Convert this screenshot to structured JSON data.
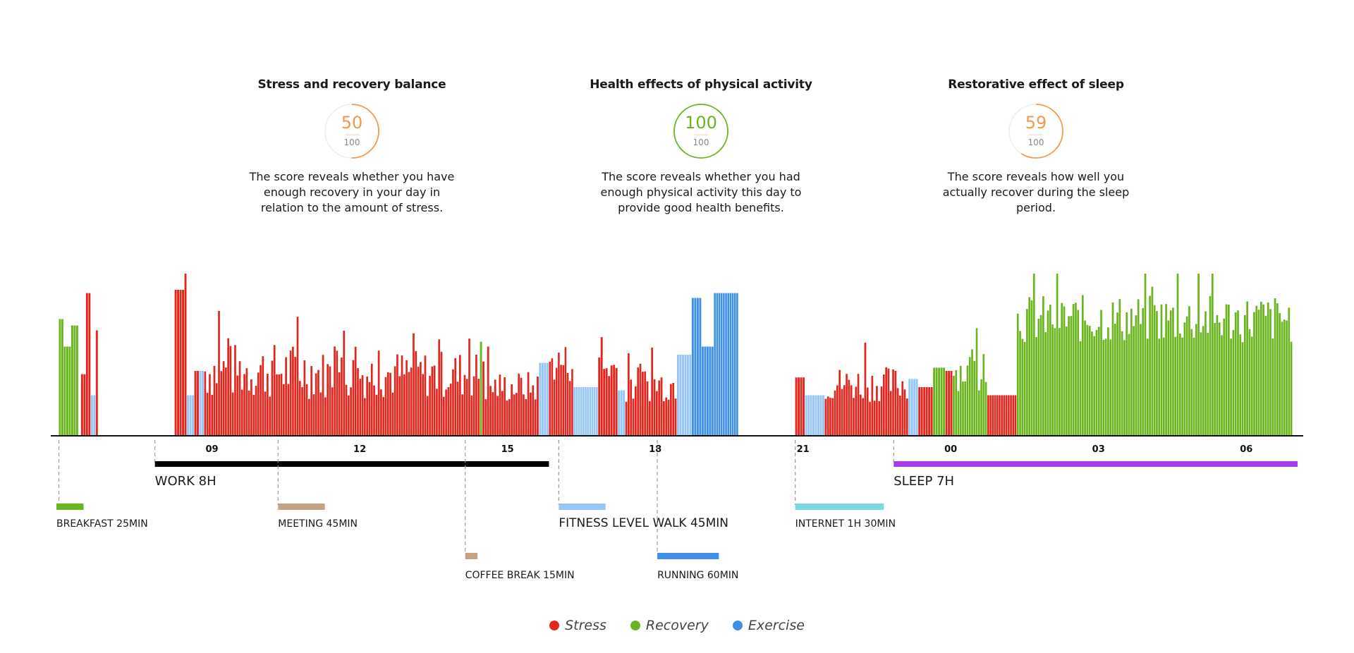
{
  "colors": {
    "stress": "#e3261d",
    "recovery": "#6ab51e",
    "exercise": "#3f8fe6",
    "light_activity": "#95c6f7",
    "gauge_orange": "#f19a4a",
    "gauge_green": "#6ab51e",
    "axis": "#111111"
  },
  "cards": [
    {
      "title": "Stress and recovery balance",
      "score": "50",
      "max": "100",
      "score_fraction": 0.5,
      "color": "#f19a4a",
      "description": "The score reveals whether you have enough recovery in your day in relation to the amount of stress."
    },
    {
      "title": "Health effects of physical activity",
      "score": "100",
      "max": "100",
      "score_fraction": 1.0,
      "color": "#6ab51e",
      "description": "The score reveals whether you had enough physical activity this day to provide good health benefits."
    },
    {
      "title": "Restorative effect of sleep",
      "score": "59",
      "max": "100",
      "score_fraction": 0.59,
      "color": "#f19a4a",
      "description": "The score reveals how well you actually recover during the sleep period."
    }
  ],
  "chart_data": {
    "type": "bar",
    "x_range_hours": [
      6.0,
      31.2
    ],
    "x_ticks": [
      {
        "hour": 9,
        "label": "09"
      },
      {
        "hour": 12,
        "label": "12"
      },
      {
        "hour": 15,
        "label": "15"
      },
      {
        "hour": 18,
        "label": "18"
      },
      {
        "hour": 21,
        "label": "21"
      },
      {
        "hour": 24,
        "label": "00"
      },
      {
        "hour": 27,
        "label": "03"
      },
      {
        "hour": 30,
        "label": "06"
      }
    ],
    "segments": [
      {
        "start": 6.05,
        "end": 6.15,
        "type": "recovery",
        "level": 0.72
      },
      {
        "start": 6.15,
        "end": 6.3,
        "type": "recovery",
        "level": 0.55
      },
      {
        "start": 6.3,
        "end": 6.45,
        "type": "recovery",
        "level": 0.68
      },
      {
        "start": 6.5,
        "end": 6.6,
        "type": "stress",
        "level": 0.38
      },
      {
        "start": 6.6,
        "end": 6.7,
        "type": "stress",
        "level": 0.88
      },
      {
        "start": 6.7,
        "end": 6.8,
        "type": "light",
        "level": 0.25
      },
      {
        "start": 6.8,
        "end": 6.85,
        "type": "stress",
        "level": 0.65
      },
      {
        "start": 8.4,
        "end": 8.6,
        "type": "stress",
        "level": 0.9
      },
      {
        "start": 8.6,
        "end": 8.65,
        "type": "stress",
        "level": 1.0
      },
      {
        "start": 8.65,
        "end": 8.8,
        "type": "light",
        "level": 0.25
      },
      {
        "start": 8.8,
        "end": 8.9,
        "type": "stress",
        "level": 0.4
      },
      {
        "start": 8.9,
        "end": 9.0,
        "type": "light",
        "level": 0.4
      },
      {
        "start": 9.0,
        "end": 11.3,
        "type": "stress",
        "level": 0.4,
        "var": 0.35
      },
      {
        "start": 11.3,
        "end": 14.6,
        "type": "stress",
        "level": 0.38,
        "var": 0.3
      },
      {
        "start": 14.6,
        "end": 14.65,
        "type": "recovery",
        "level": 0.58
      },
      {
        "start": 14.65,
        "end": 15.8,
        "type": "stress",
        "level": 0.3,
        "var": 0.2
      },
      {
        "start": 15.8,
        "end": 16.0,
        "type": "light",
        "level": 0.45
      },
      {
        "start": 16.0,
        "end": 16.5,
        "type": "stress",
        "level": 0.45,
        "var": 0.25
      },
      {
        "start": 16.5,
        "end": 17.0,
        "type": "light",
        "level": 0.3
      },
      {
        "start": 17.0,
        "end": 17.4,
        "type": "stress",
        "level": 0.42,
        "var": 0.2
      },
      {
        "start": 17.4,
        "end": 17.55,
        "type": "light",
        "level": 0.28
      },
      {
        "start": 17.55,
        "end": 18.6,
        "type": "stress",
        "level": 0.32,
        "var": 0.22
      },
      {
        "start": 18.6,
        "end": 18.9,
        "type": "light",
        "level": 0.5
      },
      {
        "start": 18.9,
        "end": 19.1,
        "type": "exercise",
        "level": 0.85
      },
      {
        "start": 19.1,
        "end": 19.35,
        "type": "exercise",
        "level": 0.55
      },
      {
        "start": 19.35,
        "end": 19.85,
        "type": "exercise",
        "level": 0.88
      },
      {
        "start": 21.0,
        "end": 21.2,
        "type": "stress",
        "level": 0.36
      },
      {
        "start": 21.2,
        "end": 21.6,
        "type": "light",
        "level": 0.25
      },
      {
        "start": 21.6,
        "end": 23.3,
        "type": "stress",
        "level": 0.32,
        "var": 0.22
      },
      {
        "start": 23.3,
        "end": 23.5,
        "type": "light",
        "level": 0.35
      },
      {
        "start": 23.5,
        "end": 23.8,
        "type": "stress",
        "level": 0.3
      },
      {
        "start": 23.8,
        "end": 24.05,
        "type": "recovery",
        "level": 0.42
      },
      {
        "start": 24.05,
        "end": 24.2,
        "type": "stress",
        "level": 0.4
      },
      {
        "start": 24.2,
        "end": 24.9,
        "type": "recovery",
        "level": 0.4,
        "var": 0.25
      },
      {
        "start": 24.9,
        "end": 25.5,
        "type": "stress",
        "level": 0.25
      },
      {
        "start": 25.5,
        "end": 31.1,
        "type": "recovery",
        "level": 0.72,
        "var": 0.3
      }
    ],
    "events": [
      {
        "label": "WORK 8H",
        "start": 8.0,
        "end": 16.0,
        "color": "#000000",
        "row": "main",
        "marker": 8.0
      },
      {
        "label": "SLEEP 7H",
        "start": 23.0,
        "end": 31.2,
        "color": "#a63ee8",
        "row": "main",
        "marker": 23.0
      },
      {
        "label": "BREAKFAST 25MIN",
        "start": 6.0,
        "end": 6.55,
        "color": "#6ab51e",
        "row": "r1",
        "marker": 6.05
      },
      {
        "label": "MEETING 45MIN",
        "start": 10.5,
        "end": 11.45,
        "color": "#c3a384",
        "row": "r1",
        "marker": 10.5
      },
      {
        "label": "FITNESS LEVEL WALK 45MIN",
        "start": 16.2,
        "end": 17.15,
        "color": "#95c6f7",
        "row": "r1",
        "marker": 16.2
      },
      {
        "label": "INTERNET 1H 30MIN",
        "start": 21.0,
        "end": 22.8,
        "color": "#7ad9e0",
        "row": "r1",
        "marker": 21.0
      },
      {
        "label": "COFFEE BREAK 15MIN",
        "start": 14.3,
        "end": 14.55,
        "color": "#c3a384",
        "row": "r2",
        "marker": 14.3
      },
      {
        "label": "RUNNING 60MIN",
        "start": 18.2,
        "end": 19.45,
        "color": "#3f8fe6",
        "row": "r2",
        "marker": 18.2
      }
    ]
  },
  "legend": [
    {
      "label": "Stress",
      "color": "#e3261d"
    },
    {
      "label": "Recovery",
      "color": "#6ab51e"
    },
    {
      "label": "Exercise",
      "color": "#3f8fe6"
    }
  ]
}
